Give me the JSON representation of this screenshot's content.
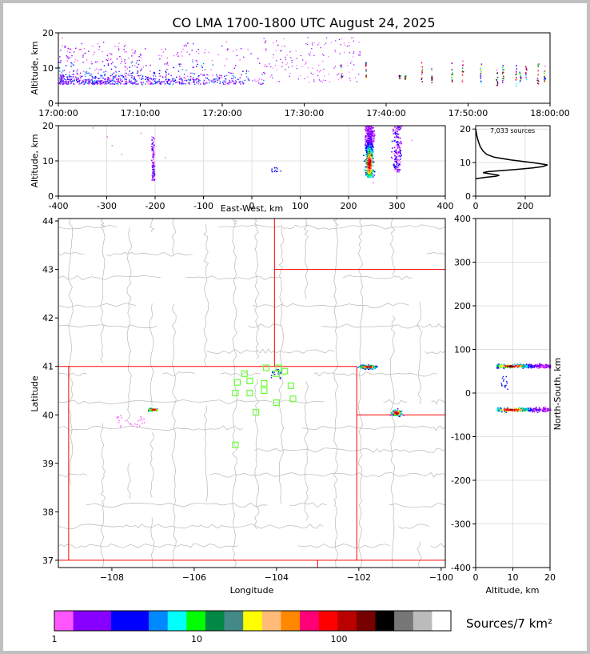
{
  "title": "CO LMA 1700-1800 UTC August 24, 2025",
  "chart_data": [
    {
      "panel": "altitude-vs-time",
      "type": "scatter",
      "ylabel": "Altitude, km",
      "ylim": [
        0,
        20
      ],
      "yticks": [
        "0",
        "10",
        "20"
      ],
      "xlim_minutes": [
        0,
        60
      ],
      "xticks": [
        "17:00:00",
        "17:10:00",
        "17:20:00",
        "17:30:00",
        "17:40:00",
        "17:50:00",
        "18:00:00"
      ]
    },
    {
      "panel": "altitude-vs-east-west",
      "type": "scatter",
      "xlabel": "East-West, km",
      "ylabel": "Altitude, km",
      "xlim": [
        -400,
        400
      ],
      "ylim": [
        0,
        20
      ],
      "xticks": [
        "-400",
        "-300",
        "-200",
        "-100",
        "0",
        "100",
        "200",
        "300",
        "400"
      ],
      "yticks": [
        "0",
        "10",
        "20"
      ]
    },
    {
      "panel": "altitude-histogram",
      "type": "line",
      "annotation": "7,033 sources",
      "xlim": [
        0,
        300
      ],
      "ylim": [
        0,
        21
      ],
      "xticks": [
        "0",
        "200"
      ],
      "yticks": [
        "0",
        "10",
        "20"
      ],
      "profile": [
        [
          0,
          5.2
        ],
        [
          40,
          5.6
        ],
        [
          80,
          5.9
        ],
        [
          95,
          6.2
        ],
        [
          60,
          6.6
        ],
        [
          30,
          7.0
        ],
        [
          50,
          7.3
        ],
        [
          100,
          7.6
        ],
        [
          170,
          8.0
        ],
        [
          230,
          8.4
        ],
        [
          270,
          8.8
        ],
        [
          290,
          9.3
        ],
        [
          230,
          10.0
        ],
        [
          140,
          10.8
        ],
        [
          75,
          11.6
        ],
        [
          45,
          12.4
        ],
        [
          30,
          13.4
        ],
        [
          18,
          14.8
        ],
        [
          10,
          16.5
        ],
        [
          5,
          18.0
        ],
        [
          2,
          19.3
        ],
        [
          0,
          20.0
        ]
      ]
    },
    {
      "panel": "plan-view-map",
      "type": "scatter",
      "xlabel": "Longitude",
      "ylabel": "Latitude",
      "xlim": [
        -109.3,
        -99.9
      ],
      "ylim": [
        36.85,
        44.05
      ],
      "xticks": [
        "−108",
        "−106",
        "−104",
        "−102",
        "−100"
      ],
      "yticks": [
        "37",
        "38",
        "39",
        "40",
        "41",
        "42",
        "43",
        "44"
      ],
      "stations": [
        [
          -105.0,
          39.38
        ],
        [
          -105.0,
          40.45
        ],
        [
          -104.95,
          40.67
        ],
        [
          -104.78,
          40.85
        ],
        [
          -104.65,
          40.45
        ],
        [
          -104.65,
          40.7
        ],
        [
          -104.5,
          40.05
        ],
        [
          -104.3,
          40.5
        ],
        [
          -104.3,
          40.65
        ],
        [
          -104.25,
          40.97
        ],
        [
          -104.0,
          40.85
        ],
        [
          -103.95,
          40.97
        ],
        [
          -104.0,
          40.25
        ],
        [
          -103.8,
          40.9
        ],
        [
          -103.65,
          40.6
        ],
        [
          -103.6,
          40.33
        ]
      ]
    },
    {
      "panel": "north-south-vs-altitude",
      "type": "scatter",
      "xlabel": "Altitude, km",
      "ylabel": "North-South, km",
      "xlim": [
        0,
        20
      ],
      "ylim": [
        -400,
        400
      ],
      "xticks": [
        "0",
        "10",
        "20"
      ],
      "yticks": [
        "-400",
        "-300",
        "-200",
        "-100",
        "0",
        "100",
        "200",
        "300",
        "400"
      ]
    },
    {
      "panel": "colorbar",
      "type": "colorbar",
      "label": "Sources/7 km²",
      "scale": "log",
      "ticks": [
        "1",
        "10",
        "100"
      ],
      "colors": [
        "#ff55ff",
        "#8800ff",
        "#8800ff",
        "#0000ff",
        "#0000ff",
        "#0088ff",
        "#00ffff",
        "#00ff00",
        "#008844",
        "#448888",
        "#ffff00",
        "#ffbb77",
        "#ff8800",
        "#ff0077",
        "#ff0000",
        "#bb0000",
        "#770000",
        "#000000",
        "#777777",
        "#bbbbbb",
        "#ffffff"
      ]
    }
  ]
}
